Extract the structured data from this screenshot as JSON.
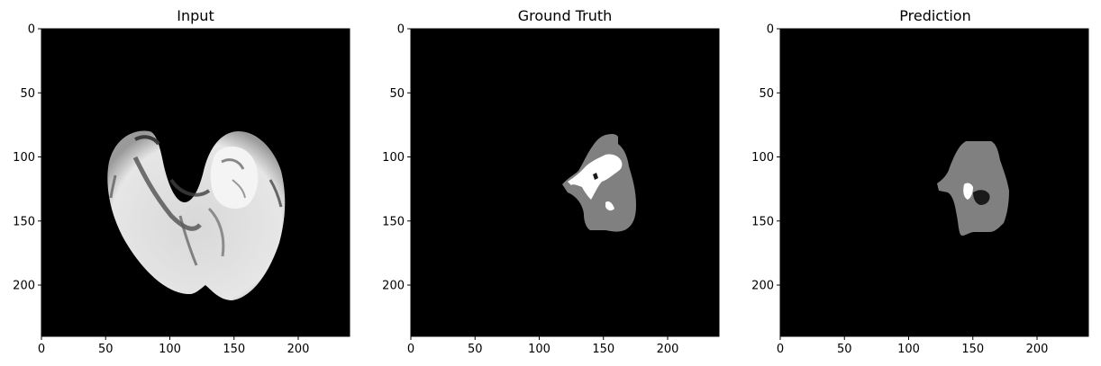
{
  "chart_data": [
    {
      "type": "image",
      "title": "Input",
      "xlim": [
        0,
        240
      ],
      "ylim": [
        240,
        0
      ],
      "xticks": [
        0,
        50,
        100,
        150,
        200
      ],
      "yticks": [
        0,
        50,
        100,
        150,
        200
      ],
      "colormap": "gray"
    },
    {
      "type": "image",
      "title": "Ground Truth",
      "xlim": [
        0,
        240
      ],
      "ylim": [
        240,
        0
      ],
      "xticks": [
        0,
        50,
        100,
        150,
        200
      ],
      "yticks": [
        0,
        50,
        100,
        150,
        200
      ],
      "colormap": "gray"
    },
    {
      "type": "image",
      "title": "Prediction",
      "xlim": [
        0,
        240
      ],
      "ylim": [
        240,
        0
      ],
      "xticks": [
        0,
        50,
        100,
        150,
        200
      ],
      "yticks": [
        0,
        50,
        100,
        150,
        200
      ],
      "colormap": "gray"
    }
  ],
  "colors": {
    "background": "#000000",
    "tissue": "#e0e0e0",
    "tumor_gray": "#808080",
    "tumor_white": "#ffffff",
    "tumor_dark": "#1a1a1a"
  }
}
